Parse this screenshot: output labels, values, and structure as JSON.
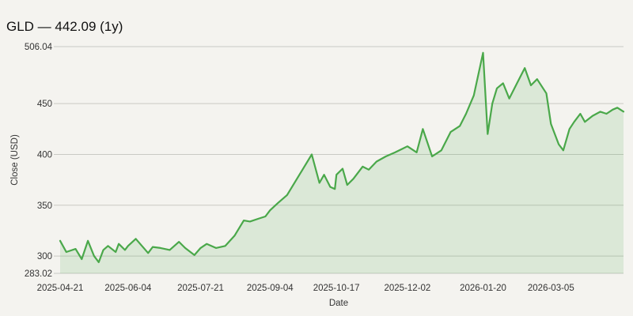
{
  "title": "GLD — 442.09 (1y)",
  "chart_data": {
    "type": "area",
    "title": "GLD — 442.09 (1y)",
    "xlabel": "Date",
    "ylabel": "Close (USD)",
    "ylim": [
      283.02,
      506.04
    ],
    "y_ticks": [
      283.02,
      300,
      350,
      400,
      450,
      506.04
    ],
    "y_tick_labels": [
      "283.02",
      "300",
      "350",
      "400",
      "450",
      "506.04"
    ],
    "x_ticks": [
      "2025-04-21",
      "2025-06-04",
      "2025-07-21",
      "2025-09-04",
      "2025-10-17",
      "2025-12-02",
      "2026-01-20",
      "2026-03-05"
    ],
    "grid": true,
    "colors": {
      "line": "#4aa84a",
      "fill": "#4aa84a"
    },
    "series": [
      {
        "x": [
          "2025-04-21",
          "2025-04-25",
          "2025-05-01",
          "2025-05-05",
          "2025-05-09",
          "2025-05-13",
          "2025-05-16",
          "2025-05-19",
          "2025-05-22",
          "2025-05-27",
          "2025-05-29",
          "2025-06-02",
          "2025-06-04",
          "2025-06-09",
          "2025-06-13",
          "2025-06-17",
          "2025-06-20",
          "2025-06-25",
          "2025-07-01",
          "2025-07-07",
          "2025-07-11",
          "2025-07-17",
          "2025-07-21",
          "2025-07-25",
          "2025-07-31",
          "2025-08-06",
          "2025-08-12",
          "2025-08-18",
          "2025-08-22",
          "2025-08-28",
          "2025-09-01",
          "2025-09-04",
          "2025-09-09",
          "2025-09-15",
          "2025-09-19",
          "2025-09-25",
          "2025-10-01",
          "2025-10-06",
          "2025-10-09",
          "2025-10-13",
          "2025-10-16",
          "2025-10-17",
          "2025-10-21",
          "2025-10-24",
          "2025-10-28",
          "2025-11-03",
          "2025-11-07",
          "2025-11-12",
          "2025-11-18",
          "2025-11-24",
          "2025-12-02",
          "2025-12-08",
          "2025-12-12",
          "2025-12-18",
          "2025-12-24",
          "2025-12-30",
          "2026-01-05",
          "2026-01-09",
          "2026-01-14",
          "2026-01-20",
          "2026-01-23",
          "2026-01-26",
          "2026-01-29",
          "2026-02-02",
          "2026-02-06",
          "2026-02-11",
          "2026-02-16",
          "2026-02-20",
          "2026-02-24",
          "2026-03-02",
          "2026-03-05",
          "2026-03-10",
          "2026-03-13",
          "2026-03-17",
          "2026-03-20",
          "2026-03-24",
          "2026-03-27",
          "2026-04-01",
          "2026-04-06",
          "2026-04-10",
          "2026-04-14",
          "2026-04-17",
          "2026-04-21"
        ],
        "y": [
          315,
          304,
          307,
          297,
          315,
          300,
          294,
          306,
          310,
          304,
          312,
          306,
          310,
          317,
          310,
          303,
          309,
          308,
          306,
          314,
          308,
          301,
          308,
          312,
          308,
          310,
          320,
          335,
          334,
          337,
          339,
          345,
          352,
          360,
          370,
          385,
          400,
          372,
          380,
          368,
          366,
          380,
          386,
          370,
          376,
          388,
          385,
          393,
          398,
          402,
          408,
          402,
          425,
          398,
          404,
          422,
          428,
          440,
          458,
          500,
          420,
          450,
          465,
          470,
          455,
          470,
          485,
          468,
          474,
          460,
          430,
          410,
          404,
          425,
          432,
          440,
          432,
          438,
          442,
          440,
          444,
          446,
          442.09
        ]
      }
    ]
  }
}
